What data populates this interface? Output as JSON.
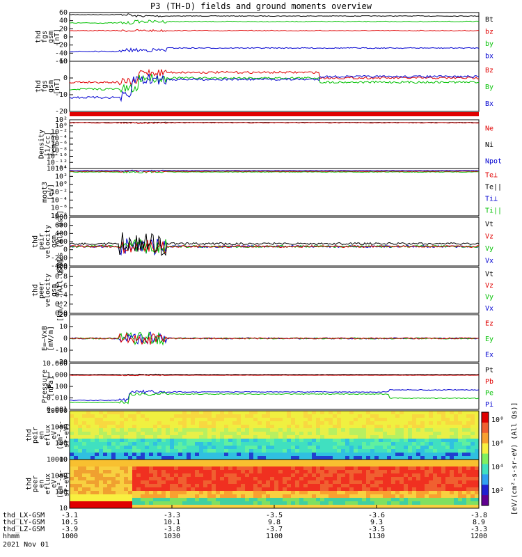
{
  "title": "P3 (TH-D) fields and ground moments overview",
  "colors": {
    "black": "#000000",
    "red": "#e00000",
    "green": "#00c000",
    "blue": "#0000d0"
  },
  "panels": [
    {
      "id": "fgs",
      "ylabel": [
        "thd",
        "fgs",
        "gsm",
        "[nT]"
      ],
      "ticks": [
        "60",
        "40",
        "20",
        "0",
        "-20",
        "-40",
        "-60"
      ],
      "legend": [
        {
          "t": "Bt",
          "c": "black"
        },
        {
          "t": "bz",
          "c": "red"
        },
        {
          "t": "by",
          "c": "green"
        },
        {
          "t": "bx",
          "c": "blue"
        }
      ]
    },
    {
      "id": "fgs_dsl",
      "ylabel": [
        "thd",
        "fgs",
        "gsm",
        "[nT]"
      ],
      "ticks": [
        "10",
        "0",
        "-10",
        "-20"
      ],
      "legend": [
        {
          "t": "Bz",
          "c": "red"
        },
        {
          "t": "By",
          "c": "green"
        },
        {
          "t": "Bx",
          "c": "blue"
        }
      ]
    },
    {
      "id": "density",
      "ylabel": [
        "Density",
        "[1/cc]",
        "[cm-3]"
      ],
      "ticks": [
        "10²",
        "10⁰",
        "10⁻²",
        "10⁻⁴",
        "10⁻⁶",
        "10⁻⁸",
        "10⁻¹⁰",
        "10⁻¹²",
        "10⁻¹⁴"
      ],
      "legend": [
        {
          "t": "Ne",
          "c": "red"
        },
        {
          "t": "Ni",
          "c": "black"
        },
        {
          "t": "Npot",
          "c": "blue"
        }
      ]
    },
    {
      "id": "temp",
      "ylabel": [
        "moqt3",
        "[eV]"
      ],
      "ticks": [
        "10⁴",
        "10²",
        "10⁰",
        "10⁻²",
        "10⁻⁴",
        "10⁻⁶",
        "10⁻⁸"
      ],
      "legend": [
        {
          "t": "Te⊥",
          "c": "red"
        },
        {
          "t": "Te||",
          "c": "black"
        },
        {
          "t": "Ti⊥",
          "c": "blue"
        },
        {
          "t": "Ti||",
          "c": "green"
        }
      ]
    },
    {
      "id": "vi",
      "ylabel": [
        "thd",
        "peir",
        "velocity",
        "gsm",
        "[km/s (All Qs)]"
      ],
      "ticks": [
        "800",
        "600",
        "400",
        "200",
        "0",
        "-200",
        "-400"
      ],
      "legend": [
        {
          "t": "Vt",
          "c": "black"
        },
        {
          "t": "Vz",
          "c": "red"
        },
        {
          "t": "Vy",
          "c": "green"
        },
        {
          "t": "Vx",
          "c": "blue"
        }
      ]
    },
    {
      "id": "ve",
      "ylabel": [
        "thd",
        "peer",
        "velocity",
        "gsm",
        "[km/s (All Qs)]"
      ],
      "ticks": [
        "1.0",
        "0.8",
        "0.6",
        "0.4",
        "0.2",
        "0.0"
      ],
      "legend": [
        {
          "t": "Vt",
          "c": "black"
        },
        {
          "t": "Vz",
          "c": "red"
        },
        {
          "t": "Vy",
          "c": "green"
        },
        {
          "t": "Vx",
          "c": "blue"
        }
      ]
    },
    {
      "id": "e",
      "ylabel": [
        "E=−VxB",
        "[mV/m]"
      ],
      "ticks": [
        "20",
        "10",
        "0",
        "-10",
        "-20"
      ],
      "legend": [
        {
          "t": "Ez",
          "c": "red"
        },
        {
          "t": "Ey",
          "c": "green"
        },
        {
          "t": "Ex",
          "c": "blue"
        }
      ]
    },
    {
      "id": "pres",
      "ylabel": [
        "Pressure",
        "[nPa]"
      ],
      "ticks": [
        "10.000",
        "1.000",
        "0.100",
        "0.010",
        "0.001"
      ],
      "legend": [
        {
          "t": "Pt",
          "c": "black"
        },
        {
          "t": "Pb",
          "c": "red"
        },
        {
          "t": "Pe",
          "c": "green"
        },
        {
          "t": "Pi",
          "c": "blue"
        }
      ]
    },
    {
      "id": "ispec",
      "ylabel": [
        "thd",
        "peir",
        "en",
        "eflux",
        "eV",
        "(cm²-s-",
        "sr-eV)"
      ],
      "ticks": [
        "10000",
        "1000",
        "100",
        "10"
      ],
      "legend": []
    },
    {
      "id": "espec",
      "ylabel": [
        "thd",
        "peer",
        "en",
        "eflux",
        "eV",
        "(cm²-s-",
        "sr-eV)"
      ],
      "ticks": [
        "10000",
        "1000",
        "100",
        "10"
      ],
      "legend": []
    }
  ],
  "colorbar": {
    "ticks": [
      "10⁸",
      "10⁶",
      "10⁴",
      "10²"
    ],
    "label": "[eV/(cm²-s-sr-eV) (All Qs)]"
  },
  "footer": {
    "rows": [
      {
        "label": "thd_LX-GSM",
        "values": [
          "-3.1",
          "-3.3",
          "-3.5",
          "-3.6",
          "-3.8"
        ]
      },
      {
        "label": "thd_LY-GSM",
        "values": [
          "10.5",
          "10.1",
          "9.8",
          "9.3",
          "8.9"
        ]
      },
      {
        "label": "thd_LZ-GSM",
        "values": [
          "-3.9",
          "-3.8",
          "-3.7",
          "-3.5",
          "-3.3"
        ]
      },
      {
        "label": "hhmm",
        "values": [
          "1000",
          "1030",
          "1100",
          "1130",
          "1200"
        ]
      }
    ],
    "date": "2021 Nov 01"
  },
  "chart_data": {
    "type": "line",
    "title": "P3 (TH-D) fields and ground moments overview",
    "x": [
      "1000",
      "1030",
      "1100",
      "1130",
      "1200"
    ],
    "xlabel": "hhmm",
    "series": [
      {
        "name": "Bt",
        "values": [
          55,
          55,
          52,
          50,
          48
        ]
      },
      {
        "name": "bz",
        "values": [
          15,
          17,
          17,
          17,
          17
        ]
      },
      {
        "name": "by",
        "values": [
          35,
          33,
          33,
          33,
          33
        ]
      },
      {
        "name": "bx",
        "values": [
          -32,
          -28,
          -28,
          -28,
          -28
        ]
      }
    ],
    "ylim": [
      -60,
      60
    ]
  }
}
